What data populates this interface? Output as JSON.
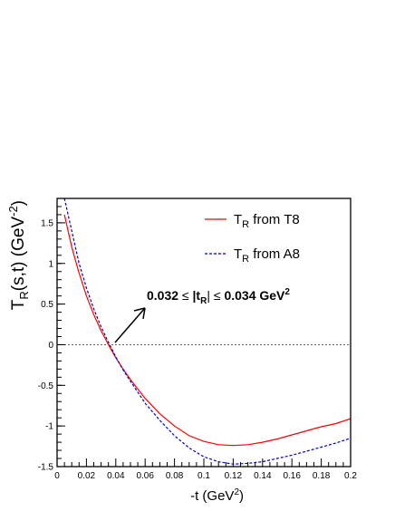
{
  "chart_data": {
    "type": "line",
    "xlabel_main": "-t (GeV",
    "xlabel_sup": "2",
    "xlabel_end": ")",
    "ylabel_main": "T",
    "ylabel_sub": "R",
    "ylabel_mid": "(s,t) (GeV",
    "ylabel_sup": "-2",
    "ylabel_end": ")",
    "xlim": [
      0,
      0.2
    ],
    "ylim": [
      -1.5,
      1.8
    ],
    "x_ticks": [
      "0",
      "0.02",
      "0.04",
      "0.06",
      "0.08",
      "0.1",
      "0.12",
      "0.14",
      "0.16",
      "0.18",
      "0.2"
    ],
    "y_ticks": [
      "1.5",
      "1",
      "0.5",
      "0",
      "-0.5",
      "-1",
      "-1.5"
    ],
    "y_tick_values": [
      1.5,
      1,
      0.5,
      0,
      -0.5,
      -1,
      -1.5
    ],
    "reference_line_y": 0,
    "legend_position": "top-right",
    "series": [
      {
        "name_main": "T",
        "name_sub": "R",
        "name_rest": " from T8",
        "color": "#ff0000",
        "style": "solid",
        "x": [
          0.005,
          0.01,
          0.015,
          0.02,
          0.025,
          0.03,
          0.035,
          0.04,
          0.045,
          0.05,
          0.06,
          0.07,
          0.08,
          0.09,
          0.1,
          0.11,
          0.12,
          0.13,
          0.14,
          0.15,
          0.16,
          0.17,
          0.18,
          0.19,
          0.2
        ],
        "y": [
          1.6,
          1.2,
          0.88,
          0.6,
          0.37,
          0.17,
          0.0,
          -0.16,
          -0.3,
          -0.43,
          -0.66,
          -0.85,
          -1.0,
          -1.12,
          -1.19,
          -1.23,
          -1.24,
          -1.23,
          -1.2,
          -1.16,
          -1.11,
          -1.06,
          -1.01,
          -0.97,
          -0.91
        ]
      },
      {
        "name_main": "T",
        "name_sub": "R",
        "name_rest": " from A8",
        "color": "#0000cc",
        "style": "dashed",
        "x": [
          0.005,
          0.01,
          0.015,
          0.02,
          0.025,
          0.03,
          0.035,
          0.04,
          0.045,
          0.05,
          0.06,
          0.07,
          0.08,
          0.09,
          0.1,
          0.11,
          0.12,
          0.13,
          0.14,
          0.15,
          0.16,
          0.17,
          0.18,
          0.19,
          0.2
        ],
        "y": [
          1.8,
          1.4,
          1.0,
          0.7,
          0.44,
          0.22,
          0.03,
          -0.15,
          -0.31,
          -0.45,
          -0.72,
          -0.93,
          -1.12,
          -1.27,
          -1.38,
          -1.44,
          -1.47,
          -1.46,
          -1.44,
          -1.4,
          -1.36,
          -1.31,
          -1.26,
          -1.21,
          -1.15
        ]
      }
    ],
    "annotation": {
      "part1": "0.032",
      "le1": " ≤ ",
      "abs_open": "|t",
      "abs_sub": "R",
      "abs_close": "|",
      "le2": " ≤ ",
      "part2": "0.034 GeV",
      "sup": "2"
    }
  }
}
